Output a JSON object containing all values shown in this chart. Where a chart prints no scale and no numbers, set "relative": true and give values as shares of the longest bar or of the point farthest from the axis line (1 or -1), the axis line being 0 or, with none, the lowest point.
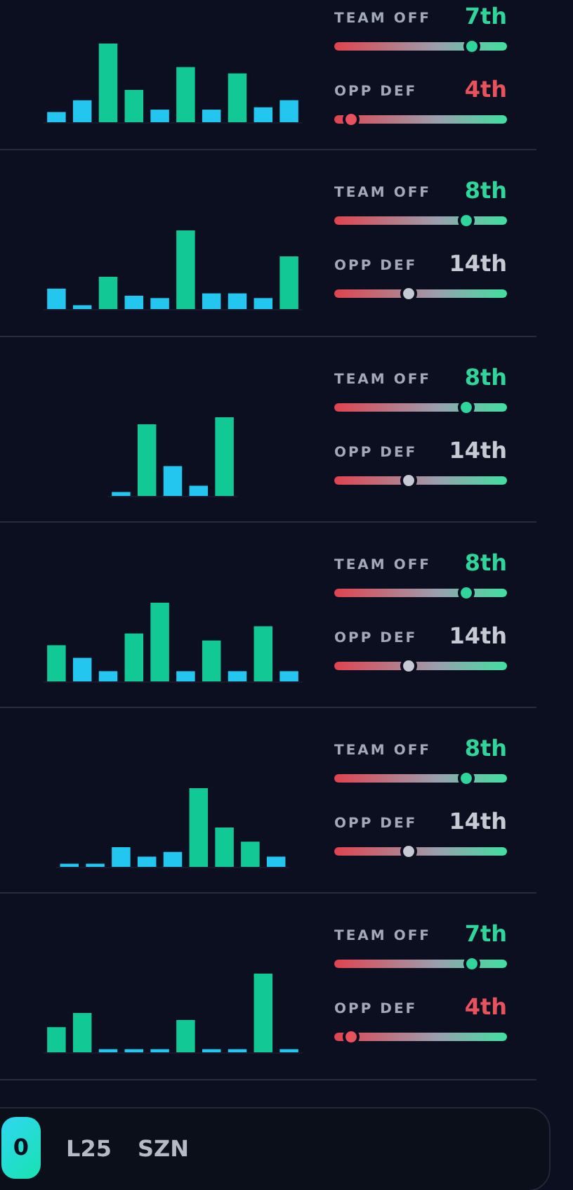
{
  "chart_data": [
    {
      "type": "bar",
      "relative": true,
      "categories": [
        null,
        null,
        null,
        null,
        null,
        null,
        null,
        null,
        null,
        null
      ],
      "values": [
        0.13,
        0.28,
        1,
        0.41,
        0.16,
        0.7,
        0.16,
        0.62,
        0.19,
        0.28
      ],
      "colors": [
        "#22c6ee",
        "#22c6ee",
        "#12c995",
        "#12c995",
        "#22c6ee",
        "#12c995",
        "#22c6ee",
        "#12c995",
        "#22c6ee",
        "#22c6ee"
      ],
      "annotations": [
        "TEAM OFF",
        "7th",
        "OPP DEF",
        "4th"
      ]
    },
    {
      "type": "bar",
      "relative": true,
      "categories": [
        null,
        null,
        null,
        null,
        null,
        null,
        null,
        null,
        null,
        null
      ],
      "values": [
        0.26,
        0.05,
        0.41,
        0.17,
        0.14,
        1,
        0.2,
        0.2,
        0.14,
        0.67
      ],
      "colors": [
        "#22c6ee",
        "#22c6ee",
        "#12c995",
        "#22c6ee",
        "#22c6ee",
        "#12c995",
        "#22c6ee",
        "#22c6ee",
        "#22c6ee",
        "#12c995"
      ],
      "annotations": [
        "TEAM OFF",
        "8th",
        "OPP DEF",
        "14th"
      ]
    },
    {
      "type": "bar",
      "relative": true,
      "categories": [
        null,
        null,
        null,
        null,
        null
      ],
      "values": [
        0.05,
        0.91,
        0.38,
        0.13,
        1
      ],
      "colors": [
        "#22c6ee",
        "#12c995",
        "#22c6ee",
        "#22c6ee",
        "#12c995"
      ],
      "annotations": [
        "TEAM OFF",
        "8th",
        "OPP DEF",
        "14th"
      ]
    },
    {
      "type": "bar",
      "relative": true,
      "categories": [
        null,
        null,
        null,
        null,
        null,
        null,
        null,
        null,
        null,
        null
      ],
      "values": [
        0.46,
        0.3,
        0.13,
        0.61,
        1,
        0.13,
        0.52,
        0.13,
        0.7,
        0.13
      ],
      "colors": [
        "#12c995",
        "#22c6ee",
        "#22c6ee",
        "#12c995",
        "#12c995",
        "#22c6ee",
        "#12c995",
        "#22c6ee",
        "#12c995",
        "#22c6ee"
      ],
      "annotations": [
        "TEAM OFF",
        "8th",
        "OPP DEF",
        "14th"
      ]
    },
    {
      "type": "bar",
      "relative": true,
      "categories": [
        null,
        null,
        null,
        null,
        null,
        null,
        null,
        null,
        null
      ],
      "values": [
        0.04,
        0.04,
        0.25,
        0.13,
        0.19,
        1,
        0.5,
        0.32,
        0.13
      ],
      "colors": [
        "#22c6ee",
        "#22c6ee",
        "#22c6ee",
        "#22c6ee",
        "#22c6ee",
        "#12c995",
        "#12c995",
        "#12c995",
        "#22c6ee"
      ],
      "annotations": [
        "TEAM OFF",
        "8th",
        "OPP DEF",
        "14th"
      ]
    },
    {
      "type": "bar",
      "relative": true,
      "categories": [
        null,
        null,
        null,
        null,
        null,
        null,
        null,
        null,
        null,
        null
      ],
      "values": [
        0.32,
        0.5,
        0.04,
        0.04,
        0.04,
        0.41,
        0.04,
        0.04,
        1,
        0.04
      ],
      "colors": [
        "#12c995",
        "#12c995",
        "#22c6ee",
        "#22c6ee",
        "#22c6ee",
        "#12c995",
        "#22c6ee",
        "#22c6ee",
        "#12c995",
        "#22c6ee"
      ],
      "annotations": [
        "TEAM OFF",
        "7th",
        "OPP DEF",
        "4th"
      ]
    },
    {
      "type": "other",
      "annotations": [
        "0",
        "L25",
        "SZN"
      ]
    }
  ]
}
